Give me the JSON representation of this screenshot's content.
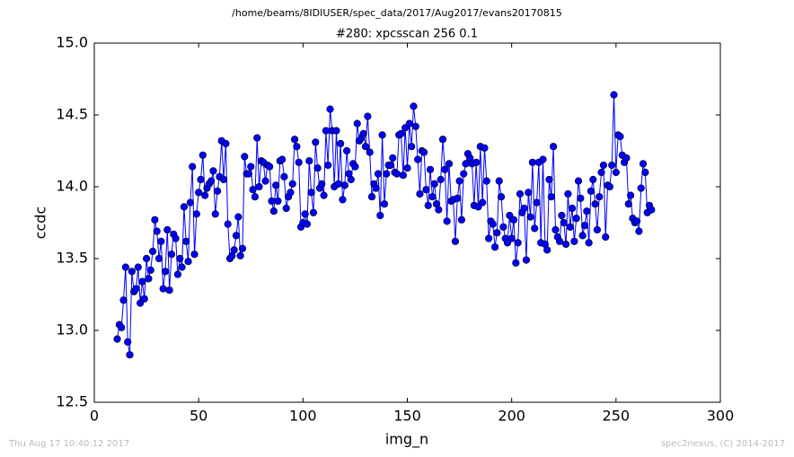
{
  "chart_data": {
    "type": "line",
    "suptitle": "/home/beams/8IDIUSER/spec_data/2017/Aug2017/evans20170815",
    "title": "#280: xpcsscan 256 0.1",
    "x_label": "img_n",
    "y_label": "ccdc",
    "footer_left": "Thu Aug 17 10:40:12 2017",
    "footer_right": "spec2nexus, (C) 2014-2017",
    "xlim": [
      0,
      300
    ],
    "xticks": [
      0,
      50,
      100,
      150,
      200,
      250,
      300
    ],
    "ylim": [
      12.5,
      15.0
    ],
    "yticks": [
      12.5,
      {
        "value": 13,
        "label": "13.0"
      },
      13.5,
      {
        "value": 14,
        "label": "14.0"
      },
      14.5,
      {
        "value": 15,
        "label": "15.0"
      }
    ],
    "x": [
      11,
      12,
      13,
      14,
      15,
      16,
      17,
      18,
      19,
      20,
      21,
      22,
      23,
      24,
      25,
      26,
      27,
      28,
      29,
      30,
      31,
      32,
      33,
      34,
      35,
      36,
      37,
      38,
      39,
      40,
      41,
      42,
      43,
      44,
      45,
      46,
      47,
      48,
      49,
      50,
      51,
      52,
      53,
      54,
      55,
      56,
      57,
      58,
      59,
      60,
      61,
      62,
      63,
      64,
      65,
      66,
      67,
      68,
      69,
      70,
      71,
      72,
      73,
      74,
      75,
      76,
      77,
      78,
      79,
      80,
      81,
      82,
      83,
      84,
      85,
      86,
      87,
      88,
      89,
      90,
      91,
      92,
      93,
      94,
      95,
      96,
      97,
      98,
      99,
      100,
      101,
      102,
      103,
      104,
      105,
      106,
      107,
      108,
      109,
      110,
      111,
      112,
      113,
      114,
      115,
      116,
      117,
      118,
      119,
      120,
      121,
      122,
      123,
      124,
      125,
      126,
      127,
      128,
      129,
      130,
      131,
      132,
      133,
      134,
      135,
      136,
      137,
      138,
      139,
      140,
      141,
      142,
      143,
      144,
      145,
      146,
      147,
      148,
      149,
      150,
      151,
      152,
      153,
      154,
      155,
      156,
      157,
      158,
      159,
      160,
      161,
      162,
      163,
      164,
      165,
      166,
      167,
      168,
      169,
      170,
      171,
      172,
      173,
      174,
      175,
      176,
      177,
      178,
      179,
      180,
      181,
      182,
      183,
      184,
      185,
      186,
      187,
      188,
      189,
      190,
      191,
      192,
      193,
      194,
      195,
      196,
      197,
      198,
      199,
      200,
      201,
      202,
      203,
      204,
      205,
      206,
      207,
      208,
      209,
      210,
      211,
      212,
      213,
      214,
      215,
      216,
      217,
      218,
      219,
      220,
      221,
      222,
      223,
      224,
      225,
      226,
      227,
      228,
      229,
      230,
      231,
      232,
      233,
      234,
      235,
      236,
      237,
      238,
      239,
      240,
      241,
      242,
      243,
      244,
      245,
      246,
      247,
      248,
      249,
      250,
      251,
      252,
      253,
      254,
      255,
      256,
      257,
      258,
      259,
      260,
      261,
      262,
      263,
      264,
      265,
      266,
      267
    ],
    "series": [
      {
        "name": "ccdc",
        "color": "#0000ff",
        "values": [
          12.94,
          13.04,
          13.02,
          13.21,
          13.44,
          12.92,
          12.83,
          13.41,
          13.27,
          13.29,
          13.44,
          13.19,
          13.34,
          13.22,
          13.5,
          13.36,
          13.42,
          13.55,
          13.77,
          13.69,
          13.5,
          13.62,
          13.29,
          13.41,
          13.7,
          13.28,
          13.53,
          13.67,
          13.64,
          13.39,
          13.5,
          13.44,
          13.86,
          13.62,
          13.48,
          13.89,
          14.14,
          13.53,
          13.81,
          13.96,
          14.05,
          14.22,
          13.94,
          13.99,
          14.02,
          14.04,
          14.11,
          13.81,
          13.97,
          14.07,
          14.32,
          14.05,
          14.3,
          13.74,
          13.5,
          13.52,
          13.56,
          13.66,
          13.79,
          13.52,
          13.57,
          14.21,
          14.09,
          14.09,
          14.14,
          13.98,
          13.93,
          14.34,
          14.0,
          14.18,
          14.17,
          14.04,
          14.15,
          14.14,
          13.9,
          13.83,
          14.01,
          13.9,
          14.18,
          14.19,
          14.07,
          13.85,
          13.93,
          13.96,
          14.02,
          14.33,
          14.28,
          14.17,
          13.72,
          13.75,
          13.81,
          13.74,
          14.18,
          13.96,
          13.82,
          14.31,
          14.13,
          13.99,
          14.02,
          13.94,
          14.39,
          14.15,
          14.54,
          14.39,
          14.0,
          14.39,
          14.02,
          14.3,
          13.91,
          14.01,
          14.25,
          14.09,
          14.05,
          14.16,
          14.14,
          14.44,
          14.32,
          14.34,
          14.37,
          14.28,
          14.49,
          14.24,
          13.93,
          14.02,
          13.99,
          14.09,
          13.8,
          14.36,
          13.88,
          14.09,
          14.15,
          14.15,
          14.2,
          14.1,
          14.09,
          14.36,
          14.37,
          14.08,
          14.41,
          14.13,
          14.44,
          14.28,
          14.56,
          14.42,
          14.19,
          13.95,
          14.25,
          14.24,
          13.98,
          13.87,
          14.12,
          13.93,
          14.02,
          13.88,
          13.84,
          14.05,
          14.33,
          14.12,
          13.76,
          14.16,
          13.9,
          13.91,
          13.62,
          13.92,
          14.04,
          13.77,
          14.09,
          14.16,
          14.23,
          14.2,
          14.16,
          13.87,
          14.17,
          13.86,
          14.28,
          13.89,
          14.27,
          14.04,
          13.64,
          13.76,
          13.74,
          13.58,
          13.68,
          14.04,
          13.93,
          13.72,
          13.64,
          13.61,
          13.8,
          13.64,
          13.77,
          13.47,
          13.61,
          13.95,
          13.82,
          13.85,
          13.49,
          13.96,
          13.79,
          14.17,
          13.71,
          13.89,
          14.17,
          13.61,
          14.19,
          13.6,
          13.56,
          14.05,
          13.93,
          14.28,
          13.7,
          13.65,
          13.62,
          13.8,
          13.75,
          13.6,
          13.95,
          13.72,
          13.85,
          13.62,
          13.78,
          14.04,
          13.92,
          13.66,
          13.73,
          13.83,
          13.61,
          13.97,
          14.05,
          13.88,
          13.7,
          13.93,
          14.1,
          14.15,
          13.65,
          14.01,
          14.0,
          14.15,
          14.64,
          14.1,
          14.36,
          14.35,
          14.22,
          14.17,
          14.2,
          13.88,
          13.94,
          13.78,
          13.75,
          13.76,
          13.69,
          13.99,
          14.16,
          14.1,
          13.82,
          13.87,
          13.84
        ]
      }
    ]
  }
}
